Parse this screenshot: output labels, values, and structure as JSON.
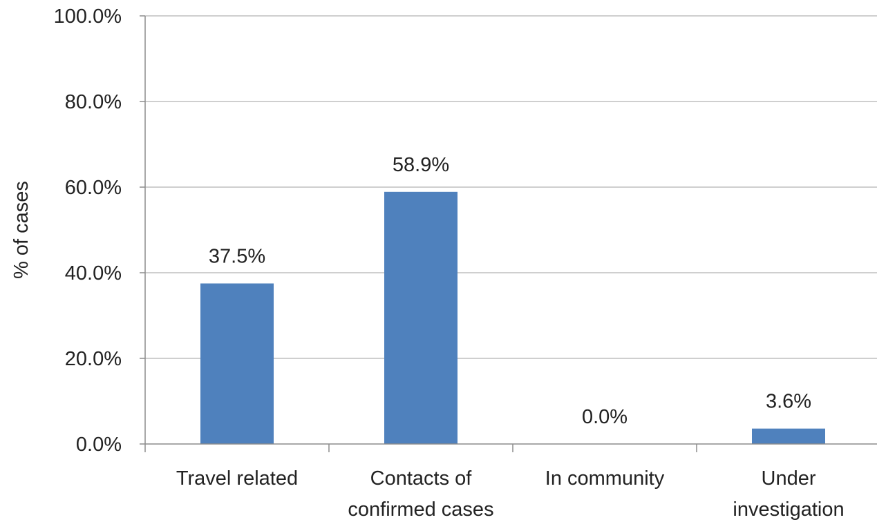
{
  "chart_data": {
    "type": "bar",
    "title": "",
    "xlabel": "",
    "ylabel": "% of cases",
    "categories": [
      [
        "Travel related"
      ],
      [
        "Contacts of",
        "confirmed cases"
      ],
      [
        "In community"
      ],
      [
        "Under",
        "investigation"
      ]
    ],
    "values": [
      37.5,
      58.9,
      0.0,
      3.6
    ],
    "data_labels": [
      "37.5%",
      "58.9%",
      "0.0%",
      "3.6%"
    ],
    "y_ticks": [
      0,
      20,
      40,
      60,
      80,
      100
    ],
    "y_tick_labels": [
      "0.0%",
      "20.0%",
      "40.0%",
      "60.0%",
      "80.0%",
      "100.0%"
    ],
    "ylim": [
      0,
      100
    ],
    "grid": true,
    "legend": "none",
    "colors": {
      "bar": "#4f81bd",
      "grid": "#bfbfbf",
      "axis": "#8c8c8c",
      "text": "#222222"
    }
  }
}
